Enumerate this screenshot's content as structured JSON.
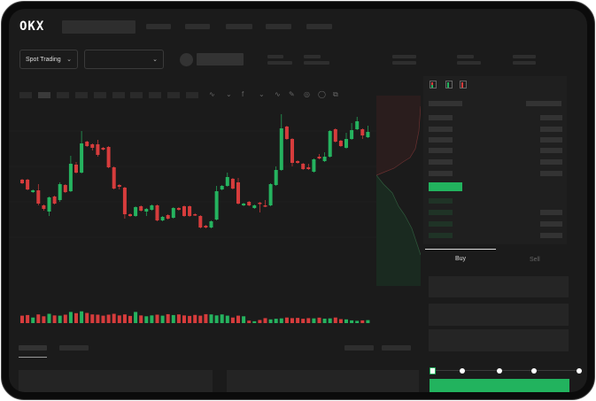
{
  "brand": {
    "logo_text": "OKX"
  },
  "colors": {
    "up": "#25b35f",
    "down": "#d63c3c",
    "background": "#1b1b1b",
    "buy_button": "#22b35e"
  },
  "toolbar": {
    "market_selector": "Spot Trading"
  },
  "trade_panel": {
    "buy_tab": "Buy",
    "sell_tab": "Sell",
    "leverage_slider_fraction": 0
  },
  "chart_data": {
    "type": "candlestick",
    "candles": [
      [
        67,
        63,
        68,
        62
      ],
      [
        67,
        56,
        68,
        55
      ],
      [
        53,
        55,
        56,
        52
      ],
      [
        55,
        40,
        62,
        38
      ],
      [
        38,
        34,
        39,
        32
      ],
      [
        31,
        47,
        48,
        26
      ],
      [
        48,
        40,
        49,
        39
      ],
      [
        44,
        62,
        64,
        42
      ],
      [
        61,
        53,
        62,
        52
      ],
      [
        54,
        85,
        94,
        53
      ],
      [
        84,
        75,
        87,
        74
      ],
      [
        75,
        108,
        122,
        74
      ],
      [
        110,
        105,
        111,
        104
      ],
      [
        107,
        103,
        108,
        100
      ],
      [
        107,
        95,
        112,
        93
      ],
      [
        103,
        101,
        104,
        100
      ],
      [
        104,
        81,
        105,
        80
      ],
      [
        81,
        57,
        82,
        56
      ],
      [
        61,
        59,
        62,
        56
      ],
      [
        58,
        28,
        59,
        23
      ],
      [
        28,
        26,
        29,
        25
      ],
      [
        26,
        36,
        37,
        25
      ],
      [
        37,
        32,
        38,
        31
      ],
      [
        31,
        34,
        35,
        26
      ],
      [
        33,
        38,
        39,
        32
      ],
      [
        38,
        21,
        39,
        20
      ],
      [
        21,
        25,
        26,
        20
      ],
      [
        27,
        23,
        28,
        22
      ],
      [
        24,
        35,
        36,
        23
      ],
      [
        35,
        33,
        36,
        32
      ],
      [
        37,
        26,
        38,
        25
      ],
      [
        37,
        26,
        38,
        25
      ],
      [
        28,
        27,
        29,
        26
      ],
      [
        26,
        13,
        27,
        12
      ],
      [
        15,
        13,
        16,
        12
      ],
      [
        13,
        20,
        21,
        12
      ],
      [
        22,
        54,
        60,
        21
      ],
      [
        56,
        60,
        61,
        55
      ],
      [
        60,
        70,
        75,
        59
      ],
      [
        68,
        57,
        69,
        56
      ],
      [
        64,
        40,
        69,
        39
      ],
      [
        38,
        40,
        41,
        37
      ],
      [
        42,
        38,
        43,
        37
      ],
      [
        35,
        38,
        39,
        34
      ],
      [
        41,
        40,
        42,
        30
      ],
      [
        38,
        37,
        44,
        36
      ],
      [
        38,
        62,
        63,
        37
      ],
      [
        61,
        78,
        82,
        60
      ],
      [
        78,
        125,
        141,
        77
      ],
      [
        127,
        113,
        128,
        112
      ],
      [
        113,
        86,
        114,
        82
      ],
      [
        88,
        86,
        89,
        85
      ],
      [
        85,
        79,
        86,
        78
      ],
      [
        81,
        79,
        85,
        78
      ],
      [
        76,
        90,
        91,
        75
      ],
      [
        93,
        91,
        96,
        90
      ],
      [
        88,
        93,
        98,
        87
      ],
      [
        93,
        122,
        123,
        92
      ],
      [
        124,
        110,
        125,
        109
      ],
      [
        111,
        105,
        112,
        104
      ],
      [
        103,
        113,
        120,
        102
      ],
      [
        113,
        123,
        131,
        112
      ],
      [
        124,
        133,
        138,
        123
      ],
      [
        124,
        117,
        125,
        113
      ],
      [
        115,
        121,
        128,
        114
      ]
    ],
    "volume": [
      60,
      65,
      45,
      70,
      55,
      75,
      62,
      60,
      68,
      90,
      80,
      95,
      82,
      70,
      68,
      60,
      68,
      75,
      62,
      70,
      58,
      90,
      62,
      55,
      62,
      68,
      60,
      72,
      65,
      70,
      62,
      58,
      66,
      60,
      72,
      70,
      62,
      70,
      60,
      45,
      60,
      55,
      20,
      15,
      25,
      40,
      30,
      35,
      38,
      45,
      40,
      42,
      35,
      40,
      38,
      44,
      36,
      38,
      45,
      32,
      30,
      22,
      18,
      22,
      24
    ],
    "xlabel": "",
    "ylabel": ""
  }
}
